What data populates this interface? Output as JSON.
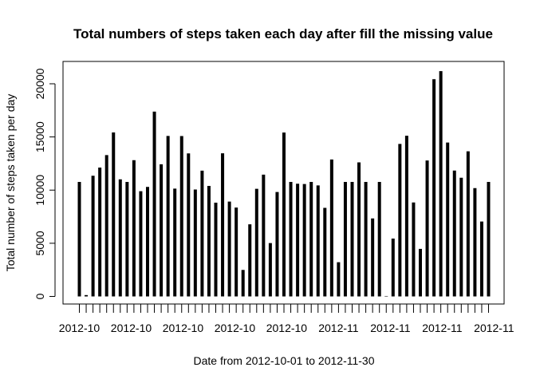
{
  "chart_data": {
    "type": "bar",
    "title": "Total numbers of steps taken each day after fill the missing value",
    "xlabel": "Date from 2012-10-01 to 2012-11-30",
    "ylabel": "Total number of steps taken per day",
    "ylim": [
      0,
      22000
    ],
    "y_ticks": [
      0,
      5000,
      10000,
      15000,
      20000
    ],
    "x_tick_labels": [
      "2012-10",
      "2012-10",
      "2012-10",
      "2012-10",
      "2012-10",
      "2012-11",
      "2012-11",
      "2012-11",
      "2012-11"
    ],
    "values": [
      10766,
      126,
      11352,
      12116,
      13294,
      15420,
      11015,
      10766,
      12811,
      9900,
      10304,
      17382,
      12426,
      15098,
      10139,
      15084,
      13452,
      10056,
      11829,
      10395,
      8821,
      13460,
      8918,
      8355,
      2492,
      6778,
      10119,
      11458,
      5018,
      9819,
      15414,
      10766,
      10600,
      10571,
      10766,
      10439,
      8334,
      12883,
      3219,
      10766,
      10766,
      12608,
      10765,
      7336,
      10766,
      41,
      5441,
      14339,
      15110,
      8841,
      4472,
      12787,
      20427,
      21194,
      14478,
      11834,
      11162,
      13646,
      10183,
      7047,
      10766
    ]
  }
}
